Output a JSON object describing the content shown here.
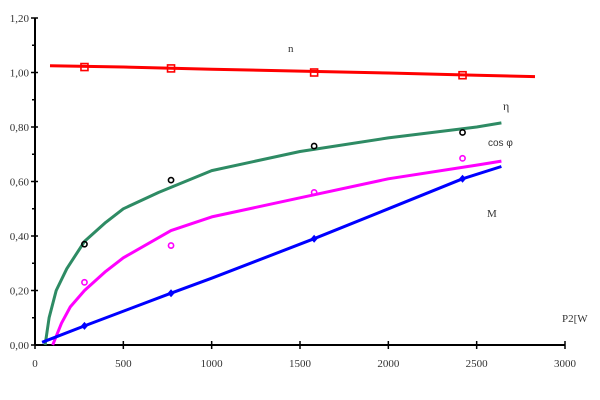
{
  "chart_data": {
    "type": "line",
    "title": "",
    "xlabel": "P2[W",
    "ylabel": "",
    "xlim": [
      0,
      3000
    ],
    "ylim": [
      0,
      1.2
    ],
    "grid": false,
    "x_ticks": [
      "0",
      "500",
      "1000",
      "1500",
      "2000",
      "2500",
      "3000"
    ],
    "y_ticks": [
      "0,00",
      "0,20",
      "0,40",
      "0,60",
      "0,80",
      "1,00",
      "1,20"
    ],
    "series": [
      {
        "name": "n",
        "color": "#ff0000",
        "marker": "square",
        "curve": [
          [
            85,
            1.025
          ],
          [
            500,
            1.02
          ],
          [
            1000,
            1.012
          ],
          [
            1500,
            1.005
          ],
          [
            2000,
            0.998
          ],
          [
            2500,
            0.99
          ],
          [
            2830,
            0.985
          ]
        ],
        "points": [
          [
            280,
            1.02
          ],
          [
            770,
            1.015
          ],
          [
            1580,
            1.0
          ],
          [
            2420,
            0.99
          ]
        ],
        "point_color": "#ff0000"
      },
      {
        "name": "η",
        "color": "#2e8b64",
        "marker": "circle",
        "curve": [
          [
            57,
            0
          ],
          [
            80,
            0.1
          ],
          [
            120,
            0.2
          ],
          [
            180,
            0.28
          ],
          [
            280,
            0.38
          ],
          [
            400,
            0.45
          ],
          [
            500,
            0.5
          ],
          [
            700,
            0.56
          ],
          [
            1000,
            0.64
          ],
          [
            1500,
            0.71
          ],
          [
            2000,
            0.76
          ],
          [
            2500,
            0.8
          ],
          [
            2640,
            0.815
          ]
        ],
        "points": [
          [
            280,
            0.37
          ],
          [
            770,
            0.605
          ],
          [
            1580,
            0.73
          ],
          [
            2420,
            0.78
          ]
        ],
        "point_color": "#000000"
      },
      {
        "name": "cos φ",
        "color": "#ff00ff",
        "marker": "circle",
        "curve": [
          [
            100,
            0
          ],
          [
            150,
            0.08
          ],
          [
            200,
            0.14
          ],
          [
            280,
            0.2
          ],
          [
            400,
            0.27
          ],
          [
            500,
            0.32
          ],
          [
            770,
            0.42
          ],
          [
            1000,
            0.47
          ],
          [
            1500,
            0.54
          ],
          [
            2000,
            0.61
          ],
          [
            2500,
            0.66
          ],
          [
            2640,
            0.675
          ]
        ],
        "points": [
          [
            280,
            0.23
          ],
          [
            770,
            0.365
          ],
          [
            1580,
            0.56
          ],
          [
            2420,
            0.685
          ]
        ],
        "point_color": "#ff00ff"
      },
      {
        "name": "M",
        "color": "#0000ff",
        "marker": "diamond",
        "curve": [
          [
            40,
            0.01
          ],
          [
            280,
            0.07
          ],
          [
            770,
            0.19
          ],
          [
            1000,
            0.245
          ],
          [
            1580,
            0.39
          ],
          [
            2000,
            0.5
          ],
          [
            2420,
            0.61
          ],
          [
            2640,
            0.655
          ]
        ],
        "points": [
          [
            280,
            0.07
          ],
          [
            770,
            0.19
          ],
          [
            1580,
            0.39
          ],
          [
            2420,
            0.61
          ]
        ],
        "point_color": "#0000ff"
      }
    ]
  }
}
